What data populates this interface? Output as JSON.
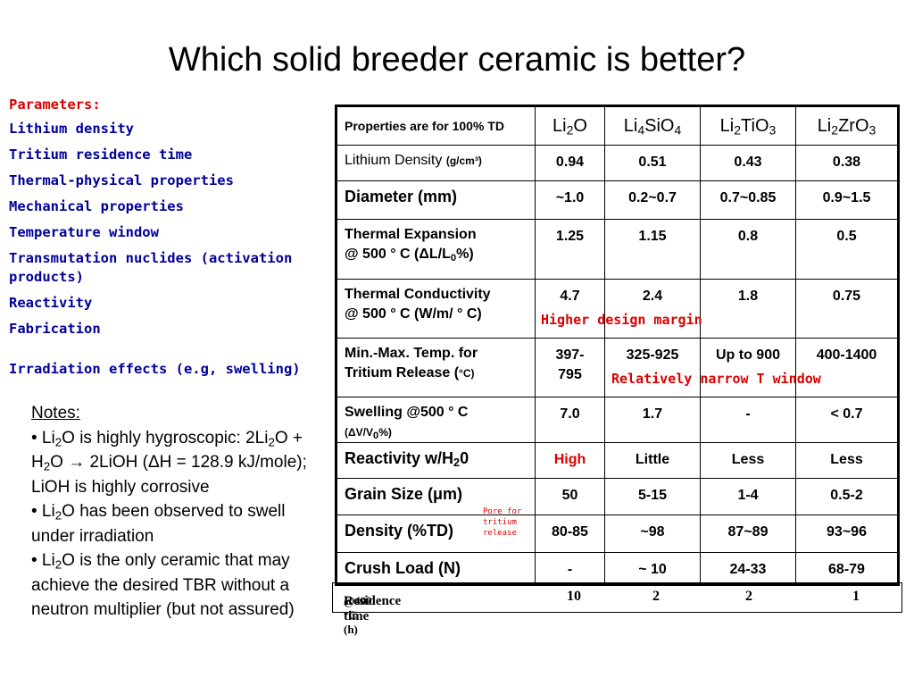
{
  "title": "Which solid breeder ceramic is better?",
  "parameters": {
    "header": "Parameters:",
    "items": [
      "Lithium density",
      "Tritium residence time",
      "Thermal-physical properties",
      "Mechanical properties",
      "Temperature window",
      "Transmutation nuclides (activation products)",
      "Reactivity",
      "Fabrication",
      "Irradiation effects (e.g, swelling)"
    ]
  },
  "notes": {
    "header": "Notes:",
    "bullet": "•",
    "n1_a": " Li",
    "n1_sub": "2",
    "n1_b": "O is highly hygroscopic:",
    "n1_c": "2Li",
    "n1_c_sub": "2",
    "n1_d": "O + H",
    "n1_d_sub": "2",
    "n1_e": "O → 2LiOH (ΔH = 128.9 kJ/mole); LiOH is highly corrosive",
    "n2_a": " Li",
    "n2_sub": "2",
    "n2_b": "O has been observed to swell under irradiation",
    "n3_a": " Li",
    "n3_sub": "2",
    "n3_b": "O is the only ceramic that may achieve the desired TBR without a neutron multiplier (but not assured)"
  },
  "table": {
    "header_label": "Properties are for 100% TD",
    "columns": [
      {
        "a": "Li",
        "s": "2",
        "b": "O",
        "s2": "",
        "c": ""
      },
      {
        "a": "Li",
        "s": "4",
        "b": "SiO",
        "s2": "4",
        "c": ""
      },
      {
        "a": "Li",
        "s": "2",
        "b": "TiO",
        "s2": "3",
        "c": ""
      },
      {
        "a": "Li",
        "s": "2",
        "b": "ZrO",
        "s2": "3",
        "c": ""
      }
    ],
    "rows": {
      "lithium_density": {
        "label": "Lithium Density ",
        "unit": "(g/cm³)",
        "values": [
          "0.94",
          "0.51",
          "0.43",
          "0.38"
        ]
      },
      "diameter": {
        "label": "Diameter (mm)",
        "values": [
          "~1.0",
          "0.2~0.7",
          "0.7~0.85",
          "0.9~1.5"
        ]
      },
      "thermal_expansion": {
        "label1": "Thermal Expansion",
        "label2": "@ 500 ° C (ΔL/L",
        "sub": "0",
        "label3": "%)",
        "values": [
          "1.25",
          "1.15",
          "0.8",
          "0.5"
        ]
      },
      "thermal_conductivity": {
        "label1": "Thermal Conductivity",
        "label2": "@ 500 ° C (W/m/ ° C)",
        "values": [
          "4.7",
          "2.4",
          "1.8",
          "0.75"
        ]
      },
      "temp_release": {
        "label1": "Min.-Max. Temp. for",
        "label2": "Tritium Release (",
        "unit": "°C",
        "label3": ")",
        "values": [
          "397-795",
          "325-925",
          "Up to 900",
          "400-1400"
        ]
      },
      "swelling": {
        "label1": "Swelling @500 ° C",
        "label2a": "(ΔV/V",
        "sub": "0",
        "label2b": "%)",
        "values": [
          "7.0",
          "1.7",
          "-",
          "< 0.7"
        ]
      },
      "reactivity": {
        "label_a": "Reactivity w/H",
        "sub": "2",
        "label_b": "0",
        "values": [
          "High",
          "Little",
          "Less",
          "Less"
        ]
      },
      "grain_size": {
        "label": "Grain Size (μm)",
        "values": [
          "50",
          "5-15",
          "1-4",
          "0.5-2"
        ]
      },
      "density": {
        "label": "Density (%TD)",
        "values": [
          "80-85",
          "~98",
          "87~89",
          "93~96"
        ]
      },
      "crush_load": {
        "label": "Crush Load (N)",
        "values": [
          "-",
          "~ 10",
          "24-33",
          "68-79"
        ]
      }
    },
    "residence_time": {
      "label": "Residence time ",
      "unit": "@400 °C (h)",
      "values": [
        "10",
        "2",
        "2",
        "1"
      ]
    }
  },
  "annotations": {
    "higher_design_margin": "Higher design margin",
    "narrow_window": "Relatively narrow T window",
    "pore_line1": "Pore for",
    "pore_line2": "tritium",
    "pore_line3": "release"
  },
  "colors": {
    "red": "#dd0000",
    "navy": "#000099"
  }
}
